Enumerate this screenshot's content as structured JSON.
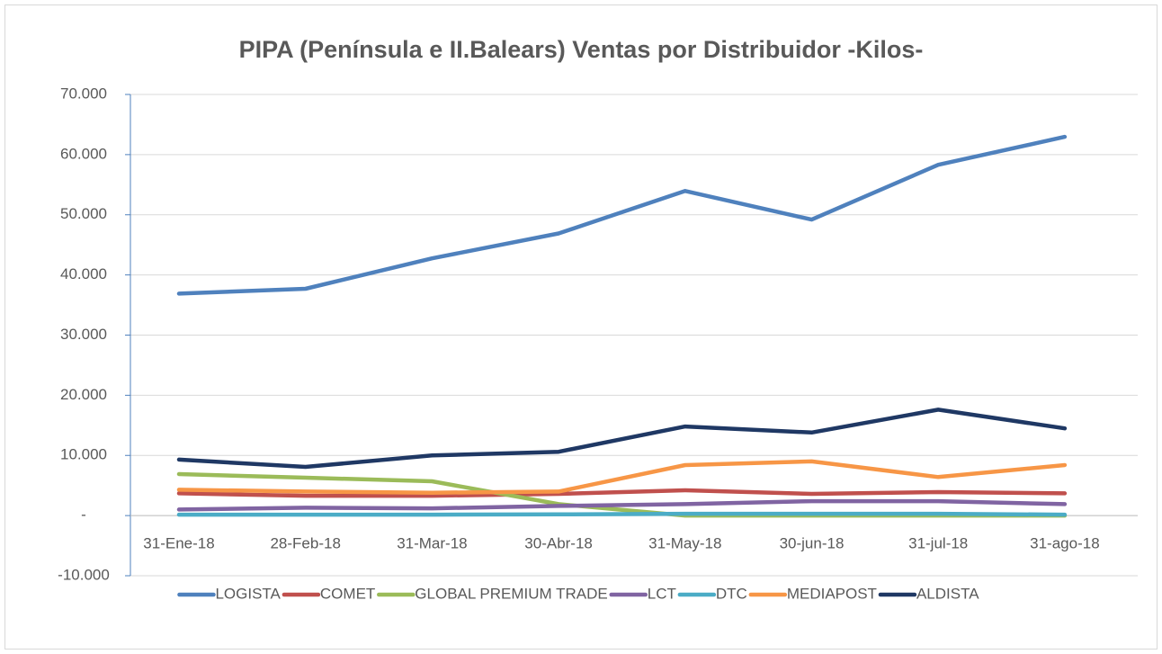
{
  "chart_data": {
    "type": "line",
    "title": "PIPA  (Península e II.Balears) Ventas por Distribuidor -Kilos-",
    "categories": [
      "31-Ene-18",
      "28-Feb-18",
      "31-Mar-18",
      "30-Abr-18",
      "31-May-18",
      "30-jun-18",
      "31-jul-18",
      "31-ago-18"
    ],
    "series": [
      {
        "name": "LOGISTA",
        "color": "#4f81bd",
        "values": [
          36900,
          37700,
          42750,
          46900,
          53950,
          49200,
          58300,
          62950
        ]
      },
      {
        "name": "COMET",
        "color": "#c0504d",
        "values": [
          3700,
          3300,
          3300,
          3600,
          4200,
          3600,
          3900,
          3700
        ]
      },
      {
        "name": "GLOBAL PREMIUM TRADE",
        "color": "#9bbb59",
        "values": [
          6900,
          6300,
          5700,
          1900,
          0,
          0,
          0,
          0
        ]
      },
      {
        "name": "LCT",
        "color": "#8064a2",
        "values": [
          1000,
          1300,
          1200,
          1600,
          1900,
          2400,
          2400,
          1900
        ]
      },
      {
        "name": "DTC",
        "color": "#4bacc6",
        "values": [
          150,
          150,
          150,
          200,
          300,
          300,
          300,
          150
        ]
      },
      {
        "name": "MEDIAPOST",
        "color": "#f79646",
        "values": [
          4300,
          4000,
          3800,
          4000,
          8400,
          9000,
          6400,
          8400
        ]
      },
      {
        "name": "ALDISTA",
        "color": "#1f3864",
        "values": [
          9300,
          8100,
          10000,
          10600,
          14800,
          13800,
          17600,
          14500
        ]
      }
    ],
    "ylim": [
      -10000,
      70000
    ],
    "yticks": [
      {
        "value": -10000,
        "label": "-10.000"
      },
      {
        "value": 0,
        "label": "-"
      },
      {
        "value": 10000,
        "label": "10.000"
      },
      {
        "value": 20000,
        "label": "20.000"
      },
      {
        "value": 30000,
        "label": "30.000"
      },
      {
        "value": 40000,
        "label": "40.000"
      },
      {
        "value": 50000,
        "label": "50.000"
      },
      {
        "value": 60000,
        "label": "60.000"
      },
      {
        "value": 70000,
        "label": "70.000"
      }
    ],
    "grid": true,
    "legend": "bottom"
  }
}
